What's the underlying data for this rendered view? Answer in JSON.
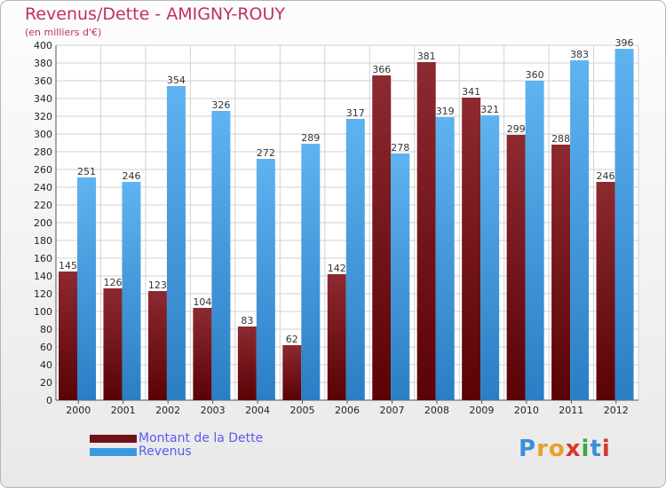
{
  "title": "Revenus/Dette - AMIGNY-ROUY",
  "subtitle": "(en milliers d'€)",
  "logo": "Proxiti",
  "colors": {
    "debt": "#6e1218",
    "revenue": "#3a9ae0",
    "title": "#c22e63",
    "legend_text": "#5a5af0"
  },
  "chart_data": {
    "type": "bar",
    "title": "Revenus/Dette - AMIGNY-ROUY",
    "ylabel": "(en milliers d'€)",
    "xlabel": "",
    "ylim": [
      0,
      400
    ],
    "yticks": [
      0,
      20,
      40,
      60,
      80,
      100,
      120,
      140,
      160,
      180,
      200,
      220,
      240,
      260,
      280,
      300,
      320,
      340,
      360,
      380,
      400
    ],
    "grid": true,
    "legend_position": "bottom-left",
    "categories": [
      "2000",
      "2001",
      "2002",
      "2003",
      "2004",
      "2005",
      "2006",
      "2007",
      "2008",
      "2009",
      "2010",
      "2011",
      "2012"
    ],
    "series": [
      {
        "name": "Montant de la Dette",
        "color": "#6e1218",
        "values": [
          145,
          126,
          123,
          104,
          83,
          62,
          142,
          366,
          381,
          341,
          299,
          288,
          246
        ]
      },
      {
        "name": "Revenus",
        "color": "#3a9ae0",
        "values": [
          251,
          246,
          354,
          326,
          272,
          289,
          317,
          278,
          319,
          321,
          360,
          383,
          396
        ]
      }
    ]
  }
}
